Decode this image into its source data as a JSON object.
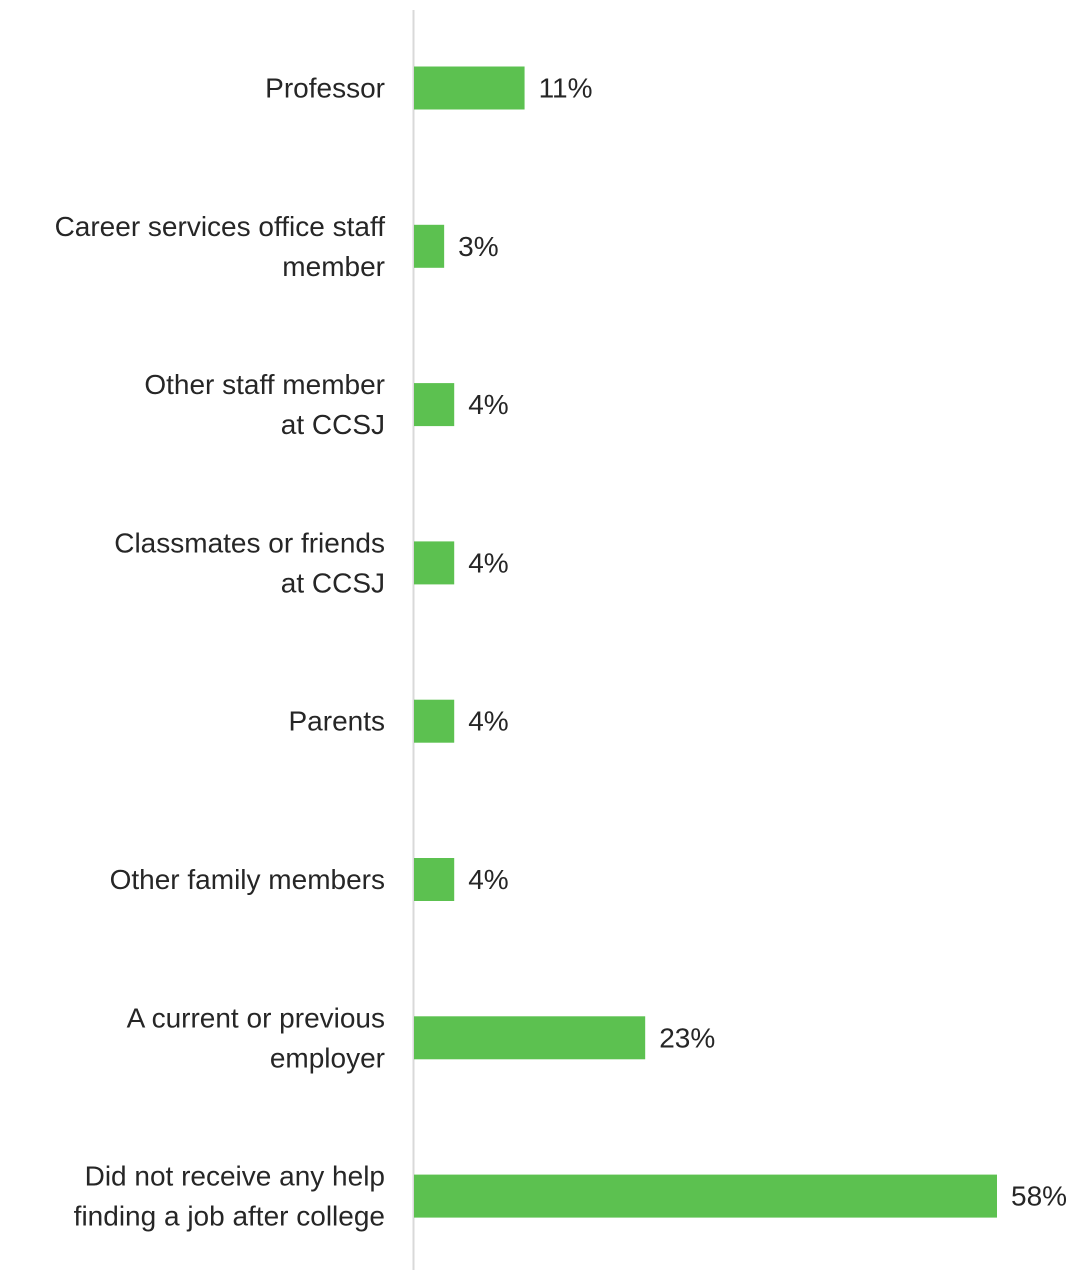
{
  "chart_data": {
    "type": "bar",
    "orientation": "horizontal",
    "categories": [
      [
        "Professor"
      ],
      [
        "Career services office staff",
        "member"
      ],
      [
        "Other staff member",
        "at CCSJ"
      ],
      [
        "Classmates or friends",
        "at CCSJ"
      ],
      [
        "Parents"
      ],
      [
        "Other family members"
      ],
      [
        "A current or previous",
        "employer"
      ],
      [
        "Did not receive any help",
        "finding a job after college"
      ]
    ],
    "values": [
      11,
      3,
      4,
      4,
      4,
      4,
      23,
      58
    ],
    "value_labels": [
      "11%",
      "3%",
      "4%",
      "4%",
      "4%",
      "4%",
      "23%",
      "58%"
    ],
    "unit": "%",
    "xlim": [
      0,
      58
    ],
    "grid": false,
    "legend": "none",
    "colors": {
      "bar": "#5CC150",
      "axis": "#D9D9D9",
      "text": "#262626"
    }
  }
}
